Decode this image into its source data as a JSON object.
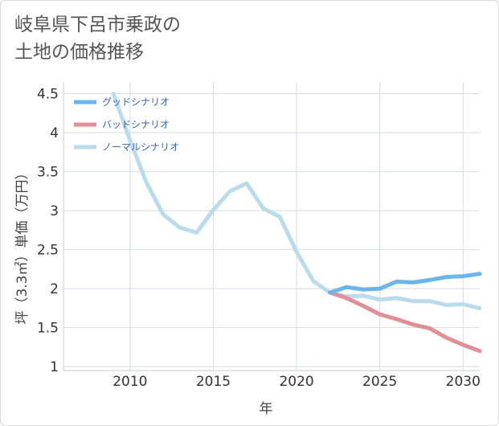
{
  "chart_data": {
    "type": "line",
    "title": "岐阜県下呂市乗政の\n土地の価格推移",
    "xlabel": "年",
    "ylabel": "坪（3.3㎡）単価（万円）",
    "xlim": [
      2006,
      2031
    ],
    "ylim": [
      0.95,
      4.65
    ],
    "xticks": [
      "2010",
      "2015",
      "2020",
      "2025",
      "2030"
    ],
    "yticks": [
      "1",
      "1.5",
      "2",
      "2.5",
      "3",
      "3.5",
      "4",
      "4.5"
    ],
    "grid": true,
    "legend_position": "top-left",
    "series": [
      {
        "name": "グッドシナリオ",
        "color": "#6cb4ec",
        "x": [
          2022,
          2023,
          2024,
          2025,
          2026,
          2027,
          2028,
          2029,
          2030,
          2031
        ],
        "y": [
          1.95,
          2.02,
          1.99,
          2.0,
          2.09,
          2.08,
          2.11,
          2.15,
          2.16,
          2.19
        ]
      },
      {
        "name": "バッドシナリオ",
        "color": "#e28e99",
        "x": [
          2022,
          2023,
          2024,
          2025,
          2026,
          2027,
          2028,
          2029,
          2030,
          2031
        ],
        "y": [
          1.95,
          1.88,
          1.78,
          1.67,
          1.61,
          1.54,
          1.49,
          1.37,
          1.28,
          1.2
        ]
      },
      {
        "name": "ノーマルシナリオ",
        "color": "#b9dcec",
        "x": [
          2009,
          2010,
          2011,
          2012,
          2013,
          2014,
          2015,
          2016,
          2017,
          2018,
          2019,
          2020,
          2021,
          2022,
          2023,
          2024,
          2025,
          2026,
          2027,
          2028,
          2029,
          2030,
          2031
        ],
        "y": [
          4.5,
          3.9,
          3.35,
          2.95,
          2.78,
          2.72,
          3.01,
          3.25,
          3.35,
          3.03,
          2.92,
          2.47,
          2.1,
          1.95,
          1.9,
          1.91,
          1.86,
          1.88,
          1.84,
          1.84,
          1.79,
          1.8,
          1.75
        ]
      }
    ]
  }
}
